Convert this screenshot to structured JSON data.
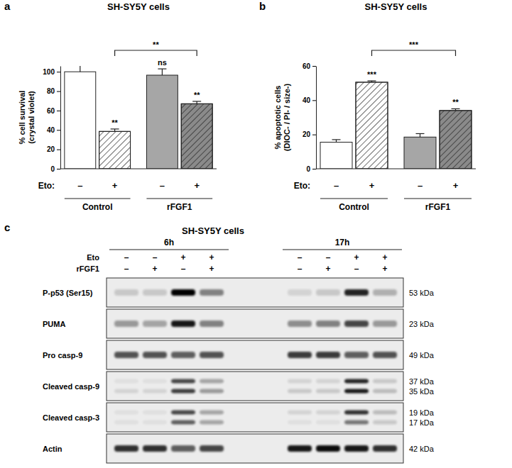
{
  "chart_data": [
    {
      "type": "bar",
      "panel": "a",
      "title": "SH-SY5Y cells",
      "y_label": [
        "% cell survival",
        "(crystal violet)"
      ],
      "x_label": "Eto:",
      "categories": [
        "–",
        "+",
        "–",
        "+"
      ],
      "groups": [
        "Control",
        "rFGF1"
      ],
      "values": [
        100,
        38.5,
        96.5,
        67
      ],
      "errors": [
        7,
        2.5,
        6.5,
        2.5
      ],
      "colors": [
        "#ffffff",
        "#ffffff",
        "#a6a6a6",
        "#8a8a8a"
      ],
      "ylim": [
        0,
        106
      ],
      "yticks": [
        0,
        20,
        40,
        60,
        80,
        100
      ],
      "annotations": [
        {
          "category": 1,
          "text": "**"
        },
        {
          "category": 2,
          "text": "ns"
        },
        {
          "category": 3,
          "text": "**"
        }
      ],
      "brackets": [
        {
          "from": 1,
          "to": 3,
          "text": "**"
        }
      ]
    },
    {
      "type": "bar",
      "panel": "b",
      "title": "SH-SY5Y cells",
      "y_label": [
        "% apoptotic cells",
        "(DIOC- / PI- / size-)"
      ],
      "x_label": "Eto:",
      "categories": [
        "–",
        "+",
        "–",
        "+"
      ],
      "groups": [
        "Control",
        "rFGF1"
      ],
      "values": [
        15.5,
        50.5,
        18.5,
        34
      ],
      "errors": [
        1.5,
        0.8,
        2,
        1
      ],
      "colors": [
        "#ffffff",
        "#ffffff",
        "#a6a6a6",
        "#8a8a8a"
      ],
      "ylim": [
        0,
        60
      ],
      "yticks": [
        0,
        20,
        40,
        60
      ],
      "annotations": [
        {
          "category": 1,
          "text": "***"
        },
        {
          "category": 3,
          "text": "**"
        }
      ],
      "brackets": [
        {
          "from": 1,
          "to": 3,
          "text": "***"
        }
      ]
    }
  ],
  "blot": {
    "panel": "c",
    "title": "SH-SY5Y cells",
    "timepoints": [
      "6h",
      "17h"
    ],
    "treatments": [
      {
        "label": "Eto",
        "signs": [
          "–",
          "–",
          "+",
          "+",
          "–",
          "–",
          "+",
          "+"
        ]
      },
      {
        "label": "rFGF1",
        "signs": [
          "–",
          "+",
          "–",
          "+",
          "–",
          "+",
          "–",
          "+"
        ]
      }
    ],
    "rows": [
      {
        "label": "P-p53 (Ser15)",
        "bands": [
          {
            "kda": "53 kDa",
            "intensity": [
              0.15,
              0.15,
              1.0,
              0.45,
              0.1,
              0.15,
              0.85,
              0.25
            ]
          }
        ]
      },
      {
        "label": "PUMA",
        "bands": [
          {
            "kda": "23 kDa",
            "intensity": [
              0.35,
              0.3,
              0.9,
              0.45,
              0.4,
              0.45,
              0.7,
              0.35
            ]
          }
        ]
      },
      {
        "label": "Pro casp-9",
        "bands": [
          {
            "kda": "49 kDa",
            "intensity": [
              0.65,
              0.65,
              0.6,
              0.65,
              0.75,
              0.75,
              0.6,
              0.65
            ]
          }
        ]
      },
      {
        "label": "Cleaved casp-9",
        "bands": [
          {
            "kda": "37 kDa",
            "intensity": [
              0.05,
              0.05,
              0.7,
              0.3,
              0.1,
              0.1,
              0.85,
              0.15
            ]
          },
          {
            "kda": "35 kDa",
            "intensity": [
              0.1,
              0.1,
              0.75,
              0.35,
              0.15,
              0.15,
              0.9,
              0.2
            ]
          }
        ]
      },
      {
        "label": "Cleaved casp-3",
        "bands": [
          {
            "kda": "19 kDa",
            "intensity": [
              0.05,
              0.05,
              0.7,
              0.3,
              0.1,
              0.1,
              0.8,
              0.2
            ]
          },
          {
            "kda": "17 kDa",
            "intensity": [
              0.05,
              0.05,
              0.6,
              0.3,
              0.05,
              0.05,
              0.5,
              0.15
            ]
          }
        ]
      },
      {
        "label": "Actin",
        "bands": [
          {
            "kda": "42 kDa",
            "intensity": [
              0.8,
              0.8,
              0.6,
              0.7,
              0.9,
              0.95,
              0.9,
              0.8
            ]
          }
        ]
      }
    ]
  }
}
